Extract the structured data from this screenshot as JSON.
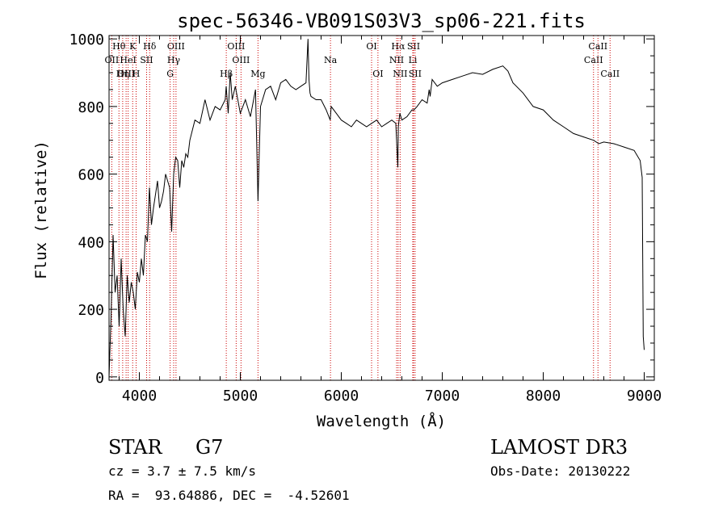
{
  "chart_data": {
    "type": "line",
    "title": "spec-56346-VB091S03V3_sp06-221.fits",
    "xlabel": "Wavelength (Å)",
    "ylabel": "Flux (relative)",
    "xlim": [
      3700,
      9100
    ],
    "ylim": [
      -10,
      1010
    ],
    "xticks": [
      4000,
      5000,
      6000,
      7000,
      8000,
      9000
    ],
    "xtick_labels": [
      "4000",
      "5000",
      "6000",
      "7000",
      "8000",
      "9000"
    ],
    "yticks": [
      0,
      200,
      400,
      600,
      800,
      1000
    ],
    "ytick_labels": [
      "0",
      "200",
      "400",
      "600",
      "800",
      "1000"
    ],
    "series": [
      {
        "name": "flux",
        "x": [
          3700,
          3720,
          3740,
          3760,
          3780,
          3800,
          3820,
          3840,
          3860,
          3880,
          3900,
          3920,
          3940,
          3960,
          3980,
          4000,
          4020,
          4040,
          4060,
          4080,
          4100,
          4120,
          4140,
          4160,
          4180,
          4200,
          4220,
          4240,
          4260,
          4280,
          4300,
          4320,
          4340,
          4360,
          4380,
          4400,
          4420,
          4440,
          4460,
          4480,
          4500,
          4550,
          4600,
          4650,
          4700,
          4750,
          4800,
          4850,
          4860,
          4880,
          4900,
          4920,
          4950,
          5000,
          5050,
          5100,
          5150,
          5175,
          5200,
          5250,
          5300,
          5350,
          5400,
          5450,
          5500,
          5550,
          5600,
          5650,
          5670,
          5680,
          5690,
          5700,
          5750,
          5800,
          5850,
          5890,
          5900,
          5950,
          6000,
          6050,
          6100,
          6150,
          6200,
          6250,
          6300,
          6350,
          6400,
          6450,
          6500,
          6540,
          6560,
          6565,
          6580,
          6600,
          6650,
          6700,
          6720,
          6750,
          6800,
          6850,
          6870,
          6880,
          6900,
          6950,
          7000,
          7100,
          7200,
          7300,
          7400,
          7500,
          7600,
          7650,
          7700,
          7800,
          7900,
          8000,
          8100,
          8200,
          8300,
          8400,
          8500,
          8550,
          8600,
          8700,
          8800,
          8900,
          8960,
          8980,
          8990,
          9000
        ],
        "y": [
          0,
          180,
          420,
          250,
          300,
          150,
          350,
          200,
          120,
          300,
          220,
          280,
          250,
          200,
          310,
          280,
          350,
          300,
          420,
          400,
          560,
          450,
          500,
          540,
          580,
          500,
          520,
          550,
          600,
          580,
          560,
          430,
          600,
          650,
          640,
          560,
          640,
          620,
          660,
          650,
          700,
          760,
          750,
          820,
          760,
          800,
          790,
          820,
          860,
          780,
          900,
          820,
          860,
          780,
          820,
          770,
          850,
          520,
          800,
          850,
          860,
          820,
          870,
          880,
          860,
          850,
          860,
          870,
          1000,
          880,
          840,
          830,
          820,
          820,
          790,
          760,
          800,
          780,
          760,
          750,
          740,
          760,
          750,
          740,
          750,
          760,
          740,
          750,
          760,
          750,
          620,
          740,
          780,
          760,
          770,
          790,
          790,
          800,
          820,
          810,
          850,
          830,
          880,
          860,
          870,
          880,
          890,
          900,
          895,
          910,
          920,
          905,
          870,
          840,
          800,
          790,
          760,
          740,
          720,
          710,
          700,
          690,
          695,
          690,
          680,
          670,
          640,
          590,
          120,
          80
        ]
      }
    ],
    "line_markers": [
      {
        "name": "Hθ",
        "wavelength": 3798,
        "row": 1
      },
      {
        "name": "OII",
        "wavelength": 3727,
        "row": 2
      },
      {
        "name": "OIII",
        "wavelength": 3869,
        "row": 3
      },
      {
        "name": "Hη",
        "wavelength": 3835,
        "row": 3
      },
      {
        "name": "K",
        "wavelength": 3934,
        "row": 1
      },
      {
        "name": "HeI",
        "wavelength": 3889,
        "row": 2
      },
      {
        "name": "H",
        "wavelength": 3968,
        "row": 3
      },
      {
        "name": "SII",
        "wavelength": 4072,
        "row": 2
      },
      {
        "name": "Hδ",
        "wavelength": 4102,
        "row": 1
      },
      {
        "name": "OIII",
        "wavelength": 4363,
        "row": 1
      },
      {
        "name": "Hγ",
        "wavelength": 4340,
        "row": 2
      },
      {
        "name": "G",
        "wavelength": 4305,
        "row": 3
      },
      {
        "name": "OIII",
        "wavelength": 4959,
        "row": 1
      },
      {
        "name": "OIII",
        "wavelength": 5007,
        "row": 2
      },
      {
        "name": "Hβ",
        "wavelength": 4861,
        "row": 3
      },
      {
        "name": "Mg",
        "wavelength": 5175,
        "row": 3
      },
      {
        "name": "Na",
        "wavelength": 5893,
        "row": 2
      },
      {
        "name": "OI",
        "wavelength": 6300,
        "row": 1
      },
      {
        "name": "OI",
        "wavelength": 6363,
        "row": 3
      },
      {
        "name": "Hα",
        "wavelength": 6563,
        "row": 1
      },
      {
        "name": "NII",
        "wavelength": 6548,
        "row": 2
      },
      {
        "name": "NII",
        "wavelength": 6583,
        "row": 3
      },
      {
        "name": "SII",
        "wavelength": 6716,
        "row": 1
      },
      {
        "name": "Li",
        "wavelength": 6708,
        "row": 2
      },
      {
        "name": "SII",
        "wavelength": 6731,
        "row": 3
      },
      {
        "name": "CaII",
        "wavelength": 8498,
        "row": 2
      },
      {
        "name": "CaII",
        "wavelength": 8542,
        "row": 1
      },
      {
        "name": "CaII",
        "wavelength": 8662,
        "row": 3
      }
    ]
  },
  "info": {
    "object_class": "STAR",
    "subclass": "G7",
    "survey": "LAMOST DR3",
    "cz": "cz = 3.7 ± 7.5 km/s",
    "obs_date": "Obs-Date: 20130222",
    "coords": "RA =  93.64886, DEC =  -4.52601"
  },
  "colors": {
    "line": "#000000",
    "marker": "#cc0000",
    "background": "#ffffff"
  }
}
